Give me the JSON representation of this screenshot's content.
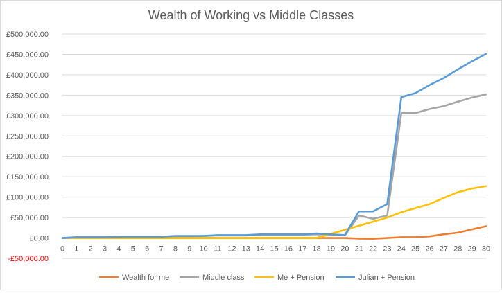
{
  "chart_data": {
    "type": "line",
    "title": "Wealth of Working vs Middle Classes",
    "xlabel": "",
    "ylabel": "",
    "x": [
      0,
      1,
      2,
      3,
      4,
      5,
      6,
      7,
      8,
      9,
      10,
      11,
      12,
      13,
      14,
      15,
      16,
      17,
      18,
      19,
      20,
      21,
      22,
      23,
      24,
      25,
      26,
      27,
      28,
      29,
      30
    ],
    "ylim": [
      -50000,
      500000
    ],
    "yticks": [
      -50000,
      0,
      50000,
      100000,
      150000,
      200000,
      250000,
      300000,
      350000,
      400000,
      450000,
      500000
    ],
    "ytick_labels": [
      "-£50,000.00",
      "£0.00",
      "£50,000.00",
      "£100,000.00",
      "£150,000.00",
      "£200,000.00",
      "£250,000.00",
      "£300,000.00",
      "£350,000.00",
      "£400,000.00",
      "£450,000.00",
      "£500,000.00"
    ],
    "negative_tick_color": "#ff0000",
    "grid": true,
    "legend": "bottom",
    "series": [
      {
        "name": "Wealth for me",
        "color": "#ed7d31",
        "values": [
          0,
          0,
          0,
          0,
          0,
          0,
          0,
          0,
          0,
          0,
          0,
          0,
          0,
          0,
          0,
          0,
          0,
          0,
          0,
          0,
          0,
          -1500,
          -2000,
          0,
          2000,
          2000,
          4000,
          9000,
          13000,
          21000,
          29000
        ]
      },
      {
        "name": "Middle class",
        "color": "#a5a5a5",
        "values": [
          0,
          2000,
          2000,
          2000,
          2000,
          3000,
          3000,
          3000,
          4000,
          4000,
          5000,
          6000,
          6000,
          6000,
          8000,
          8000,
          8000,
          8000,
          9000,
          8000,
          6000,
          55000,
          47000,
          55000,
          306000,
          306000,
          316000,
          323000,
          334000,
          344000,
          352000
        ]
      },
      {
        "name": "Me + Pension",
        "color": "#ffc000",
        "values": [
          0,
          0,
          0,
          0,
          0,
          0,
          0,
          0,
          0,
          0,
          0,
          0,
          0,
          0,
          0,
          0,
          0,
          0,
          0,
          10000,
          20000,
          30000,
          40000,
          50000,
          63000,
          73000,
          83000,
          98000,
          112000,
          121000,
          127000
        ]
      },
      {
        "name": "Julian + Pension",
        "color": "#5b9bd5",
        "values": [
          0,
          2000,
          2000,
          2000,
          3000,
          3000,
          3000,
          3000,
          5000,
          5000,
          5000,
          7000,
          7000,
          7000,
          9000,
          9000,
          9000,
          9000,
          11000,
          9000,
          7000,
          65000,
          65000,
          83000,
          345000,
          355000,
          375000,
          392000,
          413000,
          433000,
          451000
        ]
      }
    ]
  }
}
